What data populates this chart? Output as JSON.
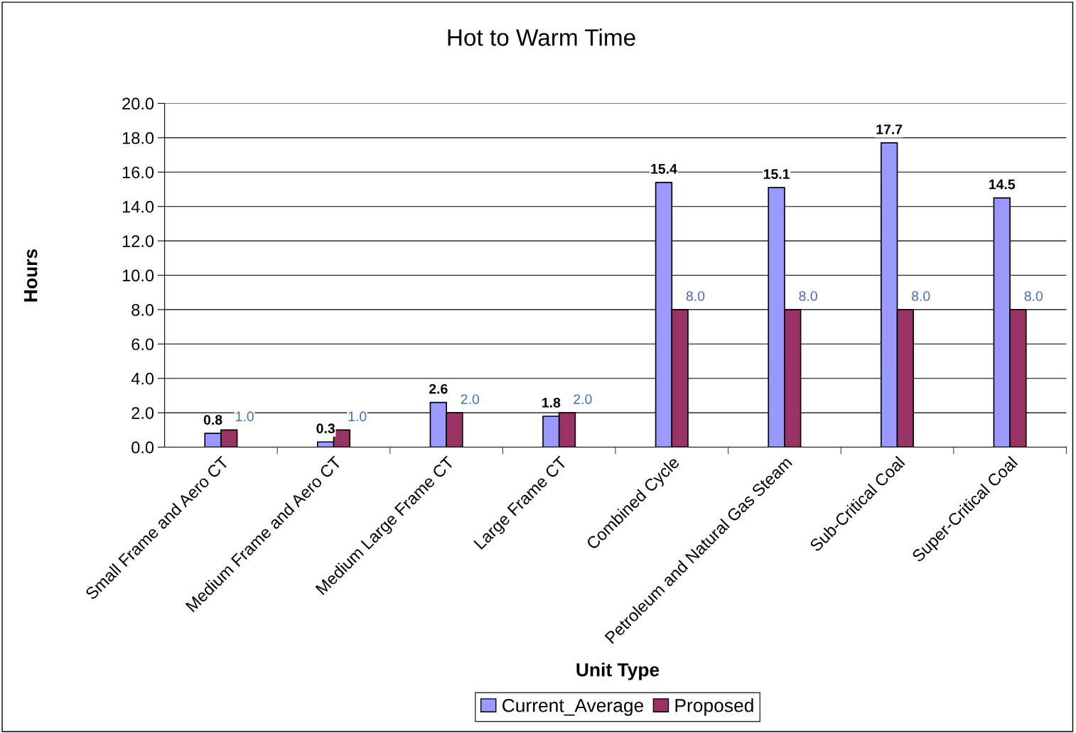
{
  "chart_data": {
    "type": "bar",
    "title": "Hot to Warm Time",
    "xlabel": "Unit Type",
    "ylabel": "Hours",
    "categories": [
      "Small Frame and Aero CT",
      "Medium Frame and Aero CT",
      "Medium Large Frame CT",
      "Large Frame CT",
      "Combined Cycle",
      "Petroleum and Natural Gas Steam",
      "Sub-Critical Coal",
      "Super-Critical Coal"
    ],
    "series": [
      {
        "name": "Current_Average",
        "color": "#9999ff",
        "values": [
          0.8,
          0.3,
          2.6,
          1.8,
          15.4,
          15.1,
          17.7,
          14.5
        ],
        "value_labels": [
          "0.8",
          "0.3",
          "2.6",
          "1.8",
          "15.4",
          "15.1",
          "17.7",
          "14.5"
        ]
      },
      {
        "name": "Proposed",
        "color": "#993366",
        "values": [
          1.0,
          1.0,
          2.0,
          2.0,
          8.0,
          8.0,
          8.0,
          8.0
        ],
        "value_labels": [
          "1.0",
          "1.0",
          "2.0",
          "2.0",
          "8.0",
          "8.0",
          "8.0",
          "8.0"
        ]
      }
    ],
    "ylim": [
      0,
      20
    ],
    "yticks": [
      {
        "value": 0,
        "label": "0.0"
      },
      {
        "value": 2,
        "label": "2.0"
      },
      {
        "value": 4,
        "label": "4.0"
      },
      {
        "value": 6,
        "label": "6.0"
      },
      {
        "value": 8,
        "label": "8.0"
      },
      {
        "value": 10,
        "label": "10.0"
      },
      {
        "value": 12,
        "label": "12.0"
      },
      {
        "value": 14,
        "label": "14.0"
      },
      {
        "value": 16,
        "label": "16.0"
      },
      {
        "value": 18,
        "label": "18.0"
      },
      {
        "value": 20,
        "label": "20.0"
      }
    ],
    "grid": "y",
    "legend": "bottom"
  }
}
